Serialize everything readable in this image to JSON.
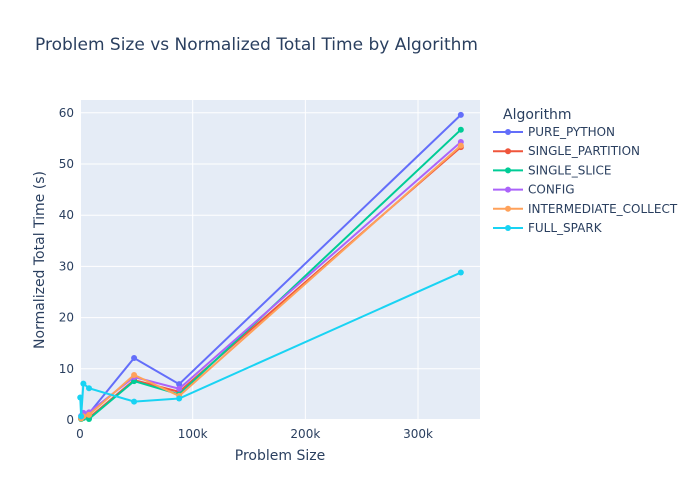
{
  "chart_data": {
    "type": "line",
    "title": "Problem Size vs Normalized Total Time by Algorithm",
    "xlabel": "Problem Size",
    "ylabel": "Normalized Total Time (s)",
    "xlim": [
      0,
      355000
    ],
    "ylim": [
      0,
      62.5
    ],
    "x_ticks": [
      0,
      100000,
      200000,
      300000
    ],
    "x_tick_labels": [
      "0",
      "100k",
      "200k",
      "300k"
    ],
    "y_ticks": [
      0,
      10,
      20,
      30,
      40,
      50,
      60
    ],
    "y_tick_labels": [
      "0",
      "10",
      "20",
      "30",
      "40",
      "50",
      "60"
    ],
    "grid": true,
    "legend": {
      "title": "Algorithm",
      "placement": "right"
    },
    "series": [
      {
        "name": "PURE_PYTHON",
        "color": "#636efa",
        "points": [
          [
            1000,
            0.4
          ],
          [
            3000,
            0.8
          ],
          [
            8000,
            1.3
          ],
          [
            48000,
            12.1
          ],
          [
            88000,
            7.0
          ],
          [
            338000,
            59.6
          ]
        ]
      },
      {
        "name": "SINGLE_PARTITION",
        "color": "#ef553b",
        "points": [
          [
            1000,
            0.3
          ],
          [
            3000,
            0.5
          ],
          [
            8000,
            0.4
          ],
          [
            48000,
            7.8
          ],
          [
            88000,
            5.5
          ],
          [
            338000,
            53.3
          ]
        ]
      },
      {
        "name": "SINGLE_SLICE",
        "color": "#00cc96",
        "points": [
          [
            1000,
            0.2
          ],
          [
            3000,
            0.4
          ],
          [
            8000,
            0.2
          ],
          [
            48000,
            7.6
          ],
          [
            88000,
            5.0
          ],
          [
            338000,
            56.7
          ]
        ]
      },
      {
        "name": "CONFIG",
        "color": "#ab63fa",
        "points": [
          [
            1000,
            0.8
          ],
          [
            3000,
            1.4
          ],
          [
            8000,
            1.5
          ],
          [
            48000,
            8.4
          ],
          [
            88000,
            6.1
          ],
          [
            338000,
            54.3
          ]
        ]
      },
      {
        "name": "INTERMEDIATE_COLLECT",
        "color": "#ffa15a",
        "points": [
          [
            1000,
            0.3
          ],
          [
            3000,
            0.7
          ],
          [
            8000,
            1.0
          ],
          [
            48000,
            8.8
          ],
          [
            88000,
            4.7
          ],
          [
            338000,
            53.6
          ]
        ]
      },
      {
        "name": "FULL_SPARK",
        "color": "#19d3f3",
        "points": [
          [
            200,
            4.4
          ],
          [
            1000,
            0.7
          ],
          [
            3000,
            7.1
          ],
          [
            8000,
            6.2
          ],
          [
            48000,
            3.6
          ],
          [
            88000,
            4.2
          ],
          [
            338000,
            28.8
          ]
        ]
      }
    ]
  }
}
